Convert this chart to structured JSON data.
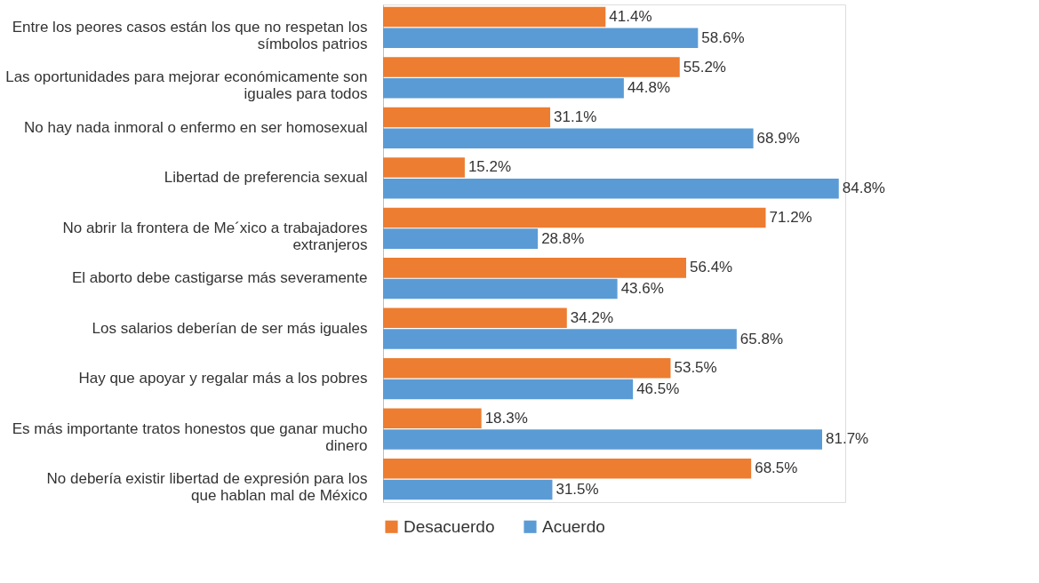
{
  "chart_data": {
    "type": "bar",
    "orientation": "horizontal",
    "categories": [
      "Entre los peores casos están los que no respetan los símbolos patrios",
      "Las oportunidades para mejorar económicamente son iguales para todos",
      "No hay nada inmoral o enfermo en ser homosexual",
      "Libertad de preferencia sexual",
      "No abrir la frontera de Me´xico a trabajadores extranjeros",
      "El aborto debe castigarse más severamente",
      "Los salarios deberían de ser más iguales",
      "Hay que apoyar y regalar más a los pobres",
      "Es más importante tratos honestos que ganar mucho dinero",
      "No debería existir libertad de expresión para los que hablan mal de México"
    ],
    "series": [
      {
        "name": "Desacuerdo",
        "color": "#ed7d31",
        "values": [
          41.4,
          55.2,
          31.1,
          15.2,
          71.2,
          56.4,
          34.2,
          53.5,
          18.3,
          68.5
        ],
        "value_labels": [
          "41.4%",
          "55.2%",
          "31.1%",
          "15.2%",
          "71.2%",
          "56.4%",
          "34.2%",
          "53.5%",
          "18.3%",
          "68.5%"
        ]
      },
      {
        "name": "Acuerdo",
        "color": "#5b9bd5",
        "values": [
          58.6,
          44.8,
          68.9,
          84.8,
          28.8,
          43.6,
          65.8,
          46.5,
          81.7,
          31.5
        ],
        "value_labels": [
          "58.6%",
          "44.8%",
          "68.9%",
          "84.8%",
          "28.8%",
          "43.6%",
          "65.8%",
          "46.5%",
          "81.7%",
          "31.5%"
        ]
      }
    ],
    "xlim": [
      0,
      86
    ],
    "tick_labels": "y",
    "legend": "bottom",
    "grid": false
  }
}
